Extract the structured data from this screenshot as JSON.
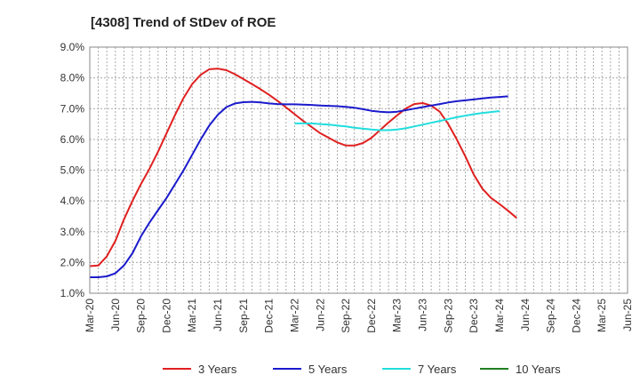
{
  "chart_data": {
    "type": "line",
    "title": "[4308]  Trend of StDev of ROE",
    "xlabel": "",
    "ylabel": "",
    "x_ticks": [
      "Mar-20",
      "Jun-20",
      "Sep-20",
      "Dec-20",
      "Mar-21",
      "Jun-21",
      "Sep-21",
      "Dec-21",
      "Mar-22",
      "Jun-22",
      "Sep-22",
      "Dec-22",
      "Mar-23",
      "Jun-23",
      "Sep-23",
      "Dec-23",
      "Mar-24",
      "Jun-24",
      "Sep-24",
      "Dec-24",
      "Mar-25",
      "Jun-25"
    ],
    "y_ticks": [
      "1.0%",
      "2.0%",
      "3.0%",
      "4.0%",
      "5.0%",
      "6.0%",
      "7.0%",
      "8.0%",
      "9.0%"
    ],
    "ylim": [
      1.0,
      9.0
    ],
    "grid": true,
    "legend_position": "bottom",
    "series": [
      {
        "name": "3 Years",
        "color": "#e02020",
        "values": [
          [
            0,
            1.88
          ],
          [
            1,
            1.9
          ],
          [
            2,
            2.2
          ],
          [
            3,
            2.7
          ],
          [
            4,
            3.4
          ],
          [
            5,
            4.0
          ],
          [
            6,
            4.55
          ],
          [
            7,
            5.05
          ],
          [
            8,
            5.6
          ],
          [
            9,
            6.2
          ],
          [
            10,
            6.8
          ],
          [
            11,
            7.35
          ],
          [
            12,
            7.8
          ],
          [
            13,
            8.1
          ],
          [
            14,
            8.28
          ],
          [
            15,
            8.3
          ],
          [
            16,
            8.25
          ],
          [
            17,
            8.12
          ],
          [
            18,
            7.96
          ],
          [
            19,
            7.8
          ],
          [
            20,
            7.63
          ],
          [
            21,
            7.45
          ],
          [
            22,
            7.25
          ],
          [
            23,
            7.04
          ],
          [
            24,
            6.82
          ],
          [
            25,
            6.6
          ],
          [
            26,
            6.4
          ],
          [
            27,
            6.2
          ],
          [
            28,
            6.05
          ],
          [
            29,
            5.9
          ],
          [
            30,
            5.8
          ],
          [
            31,
            5.8
          ],
          [
            32,
            5.88
          ],
          [
            33,
            6.05
          ],
          [
            34,
            6.3
          ],
          [
            35,
            6.55
          ],
          [
            36,
            6.78
          ],
          [
            37,
            7.0
          ],
          [
            38,
            7.15
          ],
          [
            39,
            7.18
          ],
          [
            40,
            7.1
          ],
          [
            41,
            6.9
          ],
          [
            42,
            6.5
          ],
          [
            43,
            6.0
          ],
          [
            44,
            5.45
          ],
          [
            45,
            4.85
          ],
          [
            46,
            4.4
          ],
          [
            47,
            4.1
          ],
          [
            48,
            3.9
          ],
          [
            49,
            3.68
          ],
          [
            50,
            3.45
          ]
        ]
      },
      {
        "name": "5 Years",
        "color": "#1a1acc",
        "values": [
          [
            0,
            1.52
          ],
          [
            1,
            1.52
          ],
          [
            2,
            1.55
          ],
          [
            3,
            1.65
          ],
          [
            4,
            1.9
          ],
          [
            5,
            2.3
          ],
          [
            6,
            2.85
          ],
          [
            7,
            3.3
          ],
          [
            8,
            3.7
          ],
          [
            9,
            4.1
          ],
          [
            10,
            4.55
          ],
          [
            11,
            5.0
          ],
          [
            12,
            5.5
          ],
          [
            13,
            6.0
          ],
          [
            14,
            6.45
          ],
          [
            15,
            6.8
          ],
          [
            16,
            7.05
          ],
          [
            17,
            7.17
          ],
          [
            18,
            7.21
          ],
          [
            19,
            7.22
          ],
          [
            20,
            7.2
          ],
          [
            21,
            7.17
          ],
          [
            22,
            7.15
          ],
          [
            23,
            7.14
          ],
          [
            24,
            7.14
          ],
          [
            25,
            7.13
          ],
          [
            26,
            7.12
          ],
          [
            27,
            7.1
          ],
          [
            28,
            7.09
          ],
          [
            29,
            7.08
          ],
          [
            30,
            7.06
          ],
          [
            31,
            7.03
          ],
          [
            32,
            6.98
          ],
          [
            33,
            6.93
          ],
          [
            34,
            6.9
          ],
          [
            35,
            6.88
          ],
          [
            36,
            6.9
          ],
          [
            37,
            6.95
          ],
          [
            38,
            7.0
          ],
          [
            39,
            7.05
          ],
          [
            40,
            7.1
          ],
          [
            41,
            7.15
          ],
          [
            42,
            7.2
          ],
          [
            43,
            7.24
          ],
          [
            44,
            7.27
          ],
          [
            45,
            7.3
          ],
          [
            46,
            7.33
          ],
          [
            47,
            7.36
          ],
          [
            48,
            7.38
          ],
          [
            49,
            7.4
          ]
        ]
      },
      {
        "name": "7 Years",
        "color": "#22dddd",
        "values": [
          [
            24,
            6.52
          ],
          [
            25,
            6.52
          ],
          [
            26,
            6.52
          ],
          [
            27,
            6.5
          ],
          [
            28,
            6.48
          ],
          [
            29,
            6.45
          ],
          [
            30,
            6.42
          ],
          [
            31,
            6.38
          ],
          [
            32,
            6.35
          ],
          [
            33,
            6.32
          ],
          [
            34,
            6.3
          ],
          [
            35,
            6.3
          ],
          [
            36,
            6.32
          ],
          [
            37,
            6.36
          ],
          [
            38,
            6.42
          ],
          [
            39,
            6.48
          ],
          [
            40,
            6.54
          ],
          [
            41,
            6.6
          ],
          [
            42,
            6.66
          ],
          [
            43,
            6.72
          ],
          [
            44,
            6.77
          ],
          [
            45,
            6.82
          ],
          [
            46,
            6.86
          ],
          [
            47,
            6.89
          ],
          [
            48,
            6.92
          ]
        ]
      },
      {
        "name": "10 Years",
        "color": "#208020",
        "values": []
      }
    ]
  }
}
